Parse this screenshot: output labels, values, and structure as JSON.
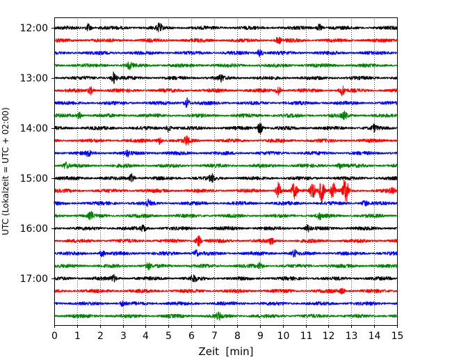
{
  "chart_data": {
    "type": "line",
    "title": "",
    "xlabel": "Zeit  [min]",
    "ylabel": "UTC (Lokalzeit = UTC + 02:00)",
    "xlim": [
      0,
      15
    ],
    "x_ticks": [
      "0",
      "1",
      "2",
      "3",
      "4",
      "5",
      "6",
      "7",
      "8",
      "9",
      "10",
      "11",
      "12",
      "13",
      "14",
      "15"
    ],
    "y_tick_labels": [
      "12:00",
      "13:00",
      "14:00",
      "15:00",
      "16:00",
      "17:00"
    ],
    "trace_interval_minutes": 15,
    "trace_colors": [
      "#000000",
      "#ff0000",
      "#0000ff",
      "#008000"
    ],
    "vertical_grid": "dotted",
    "series": [
      {
        "start": "12:00",
        "color": "#000000",
        "events": [
          {
            "t": 1.5,
            "amp": 0.4
          },
          {
            "t": 4.6,
            "amp": 0.35
          },
          {
            "t": 11.6,
            "amp": 0.35
          }
        ]
      },
      {
        "start": "12:15",
        "color": "#ff0000",
        "events": [
          {
            "t": 9.8,
            "amp": 0.3
          }
        ]
      },
      {
        "start": "12:30",
        "color": "#0000ff",
        "events": [
          {
            "t": 9.0,
            "amp": 0.4
          }
        ]
      },
      {
        "start": "12:45",
        "color": "#008000",
        "events": [
          {
            "t": 3.3,
            "amp": 0.3
          }
        ]
      },
      {
        "start": "13:00",
        "color": "#000000",
        "events": [
          {
            "t": 2.6,
            "amp": 0.55
          },
          {
            "t": 7.3,
            "amp": 0.3
          }
        ]
      },
      {
        "start": "13:15",
        "color": "#ff0000",
        "events": [
          {
            "t": 1.6,
            "amp": 0.35
          },
          {
            "t": 9.8,
            "amp": 0.4
          },
          {
            "t": 12.6,
            "amp": 0.45
          }
        ]
      },
      {
        "start": "13:30",
        "color": "#0000ff",
        "events": [
          {
            "t": 5.8,
            "amp": 0.5
          }
        ]
      },
      {
        "start": "13:45",
        "color": "#008000",
        "events": [
          {
            "t": 1.1,
            "amp": 0.3
          },
          {
            "t": 12.7,
            "amp": 0.35
          }
        ]
      },
      {
        "start": "14:00",
        "color": "#000000",
        "events": [
          {
            "t": 5.0,
            "amp": 0.35
          },
          {
            "t": 9.0,
            "amp": 0.6
          },
          {
            "t": 14.0,
            "amp": 0.3
          }
        ]
      },
      {
        "start": "14:15",
        "color": "#ff0000",
        "events": [
          {
            "t": 4.6,
            "amp": 0.35
          },
          {
            "t": 5.8,
            "amp": 0.4
          }
        ]
      },
      {
        "start": "14:30",
        "color": "#0000ff",
        "events": [
          {
            "t": 1.5,
            "amp": 0.25
          },
          {
            "t": 3.2,
            "amp": 0.25
          }
        ]
      },
      {
        "start": "14:45",
        "color": "#008000",
        "events": [
          {
            "t": 0.5,
            "amp": 0.3
          },
          {
            "t": 12.5,
            "amp": 0.3
          }
        ]
      },
      {
        "start": "15:00",
        "color": "#000000",
        "events": [
          {
            "t": 3.4,
            "amp": 0.4
          },
          {
            "t": 6.9,
            "amp": 0.35
          }
        ]
      },
      {
        "start": "15:15",
        "color": "#ff0000",
        "events": [
          {
            "t": 9.8,
            "amp": 0.8
          },
          {
            "t": 10.5,
            "amp": 0.7
          },
          {
            "t": 11.3,
            "amp": 0.9
          },
          {
            "t": 11.7,
            "amp": 1.2
          },
          {
            "t": 12.2,
            "amp": 0.8
          },
          {
            "t": 12.75,
            "amp": 1.4
          },
          {
            "t": 14.8,
            "amp": 0.3
          }
        ]
      },
      {
        "start": "15:30",
        "color": "#0000ff",
        "events": [
          {
            "t": 4.1,
            "amp": 0.3
          },
          {
            "t": 13.6,
            "amp": 0.3
          }
        ]
      },
      {
        "start": "15:45",
        "color": "#008000",
        "events": [
          {
            "t": 1.6,
            "amp": 0.3
          },
          {
            "t": 11.6,
            "amp": 0.3
          }
        ]
      },
      {
        "start": "16:00",
        "color": "#000000",
        "events": [
          {
            "t": 3.9,
            "amp": 0.3
          },
          {
            "t": 11.1,
            "amp": 0.3
          }
        ]
      },
      {
        "start": "16:15",
        "color": "#ff0000",
        "events": [
          {
            "t": 6.3,
            "amp": 0.55
          },
          {
            "t": 9.5,
            "amp": 0.3
          }
        ]
      },
      {
        "start": "16:30",
        "color": "#0000ff",
        "events": [
          {
            "t": 2.1,
            "amp": 0.3
          },
          {
            "t": 6.2,
            "amp": 0.3
          },
          {
            "t": 10.5,
            "amp": 0.3
          }
        ]
      },
      {
        "start": "16:45",
        "color": "#008000",
        "events": [
          {
            "t": 4.1,
            "amp": 0.3
          },
          {
            "t": 9.0,
            "amp": 0.3
          }
        ]
      },
      {
        "start": "17:00",
        "color": "#000000",
        "events": [
          {
            "t": 2.6,
            "amp": 0.3
          },
          {
            "t": 6.1,
            "amp": 0.35
          }
        ]
      },
      {
        "start": "17:15",
        "color": "#ff0000",
        "events": [
          {
            "t": 12.6,
            "amp": 0.25
          }
        ]
      },
      {
        "start": "17:30",
        "color": "#0000ff",
        "events": [
          {
            "t": 3.0,
            "amp": 0.25
          }
        ]
      },
      {
        "start": "17:45",
        "color": "#008000",
        "events": [
          {
            "t": 7.2,
            "amp": 0.3
          }
        ]
      }
    ]
  }
}
